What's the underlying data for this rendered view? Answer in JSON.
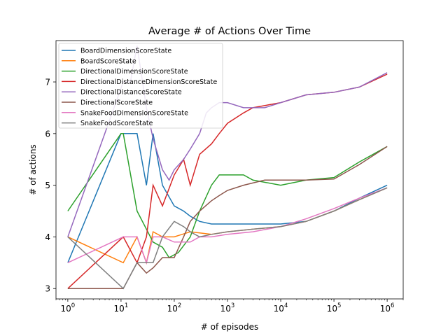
{
  "chart_data": {
    "type": "line",
    "title": "Average # of Actions Over Time",
    "xlabel": "# of episodes",
    "ylabel": "# of actions",
    "xscale": "log",
    "xlim": [
      0.6,
      2000000
    ],
    "ylim": [
      2.8,
      7.8
    ],
    "xticks": [
      {
        "value": 1,
        "base": "10",
        "exp": "0"
      },
      {
        "value": 10,
        "base": "10",
        "exp": "1"
      },
      {
        "value": 100,
        "base": "10",
        "exp": "2"
      },
      {
        "value": 1000,
        "base": "10",
        "exp": "3"
      },
      {
        "value": 10000,
        "base": "10",
        "exp": "4"
      },
      {
        "value": 100000,
        "base": "10",
        "exp": "5"
      },
      {
        "value": 1000000,
        "base": "10",
        "exp": "6"
      }
    ],
    "yticks": [
      3,
      4,
      5,
      6,
      7
    ],
    "legend_position": "upper-left",
    "grid": false,
    "series": [
      {
        "name": "BoardDimensionScoreState",
        "color": "#1f77b4",
        "points": [
          [
            1,
            3.5
          ],
          [
            10,
            6.0
          ],
          [
            11,
            6.0
          ],
          [
            20,
            6.0
          ],
          [
            30,
            5.0
          ],
          [
            40,
            6.0
          ],
          [
            60,
            5.0
          ],
          [
            100,
            4.6
          ],
          [
            150,
            4.5
          ],
          [
            200,
            4.4
          ],
          [
            300,
            4.3
          ],
          [
            500,
            4.25
          ],
          [
            1000,
            4.25
          ],
          [
            3000,
            4.25
          ],
          [
            10000,
            4.25
          ],
          [
            30000,
            4.3
          ],
          [
            100000,
            4.5
          ],
          [
            300000,
            4.75
          ],
          [
            1000000,
            5.0
          ]
        ]
      },
      {
        "name": "BoardScoreState",
        "color": "#ff7f0e",
        "points": [
          [
            1,
            4.0
          ],
          [
            11,
            3.5
          ],
          [
            20,
            4.0
          ],
          [
            30,
            3.5
          ],
          [
            40,
            4.1
          ],
          [
            60,
            4.0
          ],
          [
            100,
            4.0
          ],
          [
            200,
            4.1
          ],
          [
            500,
            4.05
          ],
          [
            1000,
            4.1
          ],
          [
            3000,
            4.15
          ],
          [
            10000,
            4.2
          ],
          [
            30000,
            4.3
          ],
          [
            100000,
            4.5
          ],
          [
            300000,
            4.72
          ],
          [
            1000000,
            4.95
          ]
        ]
      },
      {
        "name": "DirectionalDimensionScoreState",
        "color": "#2ca02c",
        "points": [
          [
            1,
            4.5
          ],
          [
            10,
            6.0
          ],
          [
            11,
            6.0
          ],
          [
            20,
            4.5
          ],
          [
            40,
            3.9
          ],
          [
            60,
            3.8
          ],
          [
            80,
            3.6
          ],
          [
            120,
            3.7
          ],
          [
            200,
            4.0
          ],
          [
            300,
            4.5
          ],
          [
            500,
            5.0
          ],
          [
            700,
            5.2
          ],
          [
            1000,
            5.2
          ],
          [
            2000,
            5.2
          ],
          [
            3000,
            5.1
          ],
          [
            10000,
            5.0
          ],
          [
            30000,
            5.1
          ],
          [
            100000,
            5.15
          ],
          [
            300000,
            5.45
          ],
          [
            1000000,
            5.75
          ]
        ]
      },
      {
        "name": "DirectionalDistanceDimensionScoreState",
        "color": "#d62728",
        "points": [
          [
            1,
            3.0
          ],
          [
            11,
            4.0
          ],
          [
            20,
            3.5
          ],
          [
            30,
            4.0
          ],
          [
            40,
            5.0
          ],
          [
            60,
            4.6
          ],
          [
            100,
            5.2
          ],
          [
            150,
            5.5
          ],
          [
            200,
            5.0
          ],
          [
            300,
            5.6
          ],
          [
            500,
            5.8
          ],
          [
            700,
            6.0
          ],
          [
            1000,
            6.2
          ],
          [
            2000,
            6.4
          ],
          [
            3000,
            6.5
          ],
          [
            10000,
            6.6
          ],
          [
            30000,
            6.75
          ],
          [
            100000,
            6.8
          ],
          [
            300000,
            6.9
          ],
          [
            1000000,
            7.15
          ]
        ]
      },
      {
        "name": "DirectionalDistanceScoreState",
        "color": "#9467bd",
        "points": [
          [
            1,
            4.0
          ],
          [
            11,
            7.0
          ],
          [
            15,
            7.0
          ],
          [
            20,
            7.7
          ],
          [
            30,
            6.5
          ],
          [
            40,
            5.9
          ],
          [
            60,
            5.3
          ],
          [
            80,
            5.1
          ],
          [
            100,
            5.3
          ],
          [
            150,
            5.5
          ],
          [
            200,
            5.7
          ],
          [
            300,
            6.0
          ],
          [
            400,
            6.4
          ],
          [
            500,
            6.5
          ],
          [
            700,
            6.6
          ],
          [
            1000,
            6.6
          ],
          [
            2000,
            6.5
          ],
          [
            5000,
            6.5
          ],
          [
            10000,
            6.6
          ],
          [
            30000,
            6.75
          ],
          [
            100000,
            6.8
          ],
          [
            300000,
            6.9
          ],
          [
            1000000,
            7.18
          ]
        ]
      },
      {
        "name": "DirectionalScoreState",
        "color": "#8c564b",
        "points": [
          [
            1,
            3.0
          ],
          [
            11,
            3.0
          ],
          [
            20,
            3.5
          ],
          [
            30,
            3.3
          ],
          [
            40,
            3.4
          ],
          [
            60,
            3.6
          ],
          [
            80,
            3.6
          ],
          [
            100,
            3.6
          ],
          [
            150,
            4.0
          ],
          [
            200,
            4.3
          ],
          [
            300,
            4.5
          ],
          [
            500,
            4.7
          ],
          [
            700,
            4.8
          ],
          [
            1000,
            4.9
          ],
          [
            2000,
            5.0
          ],
          [
            5000,
            5.1
          ],
          [
            10000,
            5.1
          ],
          [
            30000,
            5.1
          ],
          [
            100000,
            5.12
          ],
          [
            300000,
            5.4
          ],
          [
            1000000,
            5.75
          ]
        ]
      },
      {
        "name": "SnakeFoodDimensionScoreState",
        "color": "#e377c2",
        "points": [
          [
            1,
            3.5
          ],
          [
            11,
            4.0
          ],
          [
            20,
            4.0
          ],
          [
            30,
            3.5
          ],
          [
            40,
            4.0
          ],
          [
            60,
            4.0
          ],
          [
            100,
            3.9
          ],
          [
            200,
            3.9
          ],
          [
            300,
            4.0
          ],
          [
            500,
            4.0
          ],
          [
            1000,
            4.05
          ],
          [
            3000,
            4.1
          ],
          [
            10000,
            4.2
          ],
          [
            30000,
            4.35
          ],
          [
            100000,
            4.55
          ],
          [
            300000,
            4.75
          ],
          [
            1000000,
            4.95
          ]
        ]
      },
      {
        "name": "SnakeFoodScoreState",
        "color": "#7f7f7f",
        "points": [
          [
            1,
            4.0
          ],
          [
            11,
            3.0
          ],
          [
            20,
            3.5
          ],
          [
            30,
            3.5
          ],
          [
            40,
            3.5
          ],
          [
            60,
            4.0
          ],
          [
            100,
            4.3
          ],
          [
            150,
            4.2
          ],
          [
            200,
            4.1
          ],
          [
            300,
            4.0
          ],
          [
            500,
            4.05
          ],
          [
            1000,
            4.1
          ],
          [
            3000,
            4.15
          ],
          [
            10000,
            4.2
          ],
          [
            30000,
            4.3
          ],
          [
            100000,
            4.5
          ],
          [
            300000,
            4.72
          ],
          [
            1000000,
            4.95
          ]
        ]
      }
    ]
  }
}
